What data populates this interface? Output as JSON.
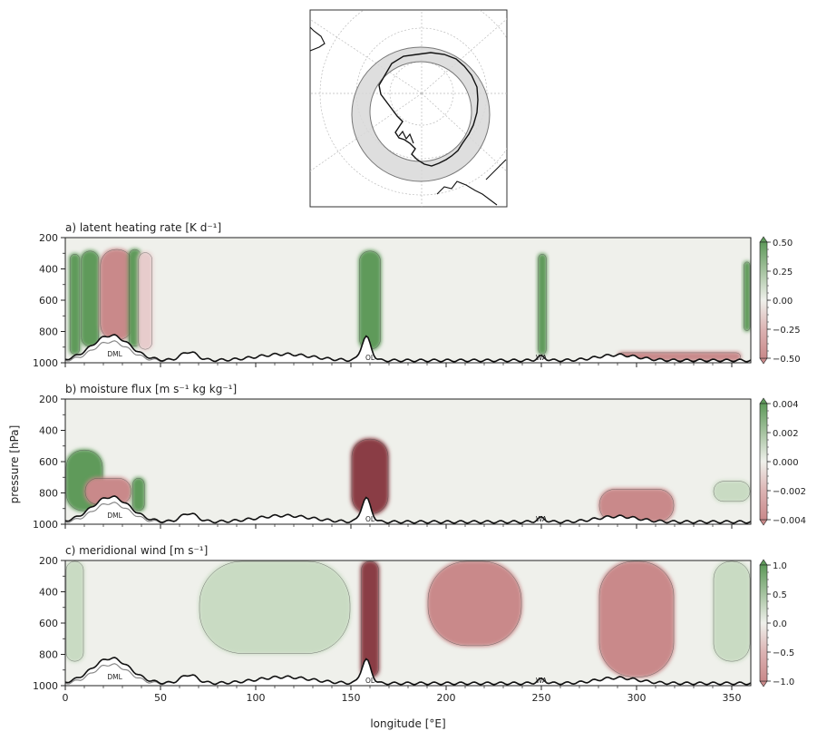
{
  "inset_map": {
    "region": "Antarctica",
    "projection": "south-polar-stereographic",
    "band": "shaded latitude ring around the continent"
  },
  "colors": {
    "positive": "#5e9a5a",
    "positive_light": "#c9dbc3",
    "neutral": "#eff0eb",
    "negative_light": "#e7cccc",
    "negative": "#c9898a",
    "negative_dark": "#8a3e44",
    "terrain_line": "#111111",
    "grey_line": "#888888"
  },
  "chart_data": [
    {
      "type": "heatmap",
      "panel": "a",
      "title": "a) latent heating rate [K d⁻¹]",
      "xlabel": "longitude [°E]",
      "ylabel": "pressure [hPa]",
      "xlim": [
        0,
        360
      ],
      "ylim": [
        1000,
        200
      ],
      "x_ticks": [
        0,
        50,
        100,
        150,
        200,
        250,
        300,
        350
      ],
      "y_ticks": [
        200,
        400,
        600,
        800,
        1000
      ],
      "colorbar_ticks": [
        "0.50",
        "0.25",
        "0.00",
        "−0.25",
        "−0.50"
      ],
      "colorbar_range": [
        -0.5,
        0.5
      ],
      "annotations": [
        {
          "text": "DML",
          "lon": 26
        },
        {
          "text": "OL",
          "lon": 160
        },
        {
          "text": "WA",
          "lon": 250
        }
      ],
      "features": [
        {
          "lon": [
            2,
            8
          ],
          "p": [
            300,
            950
          ],
          "value": 0.3
        },
        {
          "lon": [
            8,
            18
          ],
          "p": [
            280,
            900
          ],
          "value": 0.5
        },
        {
          "lon": [
            18,
            36
          ],
          "p": [
            270,
            860
          ],
          "value": -0.35
        },
        {
          "lon": [
            33,
            40
          ],
          "p": [
            270,
            900
          ],
          "value": 0.4
        },
        {
          "lon": [
            38,
            46
          ],
          "p": [
            290,
            920
          ],
          "value": -0.2
        },
        {
          "lon": [
            154,
            166
          ],
          "p": [
            280,
            920
          ],
          "value": 0.5
        },
        {
          "lon": [
            248,
            253
          ],
          "p": [
            300,
            950
          ],
          "value": 0.5
        },
        {
          "lon": [
            290,
            355
          ],
          "p": [
            930,
            990
          ],
          "value": -0.3
        },
        {
          "lon": [
            356,
            360
          ],
          "p": [
            350,
            800
          ],
          "value": 0.4
        }
      ]
    },
    {
      "type": "heatmap",
      "panel": "b",
      "title": "b) moisture flux [m s⁻¹ kg kg⁻¹]",
      "xlabel": "longitude [°E]",
      "ylabel": "pressure [hPa]",
      "xlim": [
        0,
        360
      ],
      "ylim": [
        1000,
        200
      ],
      "x_ticks": [
        0,
        50,
        100,
        150,
        200,
        250,
        300,
        350
      ],
      "y_ticks": [
        200,
        400,
        600,
        800,
        1000
      ],
      "colorbar_ticks": [
        "0.004",
        "0.002",
        "0.000",
        "−0.002",
        "−0.004"
      ],
      "colorbar_range": [
        -0.004,
        0.004
      ],
      "annotations": [
        {
          "text": "DML",
          "lon": 26
        },
        {
          "text": "OL",
          "lon": 160
        },
        {
          "text": "WA",
          "lon": 250
        }
      ],
      "features": [
        {
          "lon": [
            0,
            20
          ],
          "p": [
            520,
            920
          ],
          "value": 0.0025
        },
        {
          "lon": [
            10,
            35
          ],
          "p": [
            700,
            880
          ],
          "value": -0.003
        },
        {
          "lon": [
            35,
            42
          ],
          "p": [
            700,
            920
          ],
          "value": 0.003
        },
        {
          "lon": [
            150,
            170
          ],
          "p": [
            450,
            940
          ],
          "value": -0.004
        },
        {
          "lon": [
            280,
            320
          ],
          "p": [
            770,
            990
          ],
          "value": -0.003
        },
        {
          "lon": [
            340,
            360
          ],
          "p": [
            720,
            860
          ],
          "value": 0.002
        }
      ]
    },
    {
      "type": "heatmap",
      "panel": "c",
      "title": "c) meridional wind [m s⁻¹]",
      "xlabel": "longitude [°E]",
      "ylabel": "pressure [hPa]",
      "xlim": [
        0,
        360
      ],
      "ylim": [
        1000,
        200
      ],
      "x_ticks": [
        0,
        50,
        100,
        150,
        200,
        250,
        300,
        350
      ],
      "y_ticks": [
        200,
        400,
        600,
        800,
        1000
      ],
      "colorbar_ticks": [
        "1.0",
        "0.5",
        "0.0",
        "−0.5",
        "−1.0"
      ],
      "colorbar_range": [
        -1.0,
        1.0
      ],
      "annotations": [
        {
          "text": "DML",
          "lon": 26
        },
        {
          "text": "OL",
          "lon": 160
        },
        {
          "text": "WA",
          "lon": 250
        }
      ],
      "features": [
        {
          "lon": [
            0,
            10
          ],
          "p": [
            200,
            850
          ],
          "value": 0.5
        },
        {
          "lon": [
            70,
            150
          ],
          "p": [
            200,
            800
          ],
          "value": 0.4
        },
        {
          "lon": [
            155,
            165
          ],
          "p": [
            200,
            950
          ],
          "value": -1.0
        },
        {
          "lon": [
            190,
            240
          ],
          "p": [
            200,
            750
          ],
          "value": -0.6
        },
        {
          "lon": [
            280,
            320
          ],
          "p": [
            200,
            950
          ],
          "value": -0.7
        },
        {
          "lon": [
            340,
            360
          ],
          "p": [
            200,
            850
          ],
          "value": 0.5
        }
      ]
    }
  ]
}
